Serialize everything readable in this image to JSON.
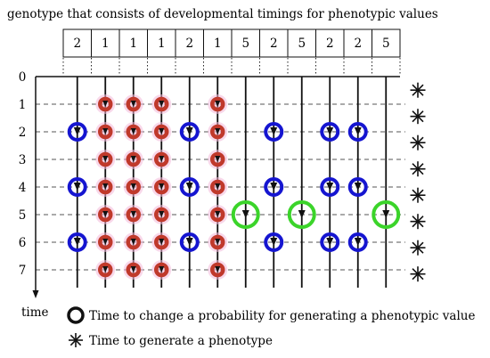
{
  "title": "genotype that consists of developmental timings for phenotypic values",
  "genotype": [
    "2",
    "1",
    "1",
    "1",
    "2",
    "1",
    "5",
    "2",
    "5",
    "2",
    "2",
    "5"
  ],
  "time_ticks": [
    "0",
    "1",
    "2",
    "3",
    "4",
    "5",
    "6",
    "7"
  ],
  "time_label": "time",
  "legend": {
    "circle_label": "Time to change a probability for generating a phenotypic value",
    "star_label": "Time to generate a phenotype"
  },
  "colors": {
    "period_1": "#c0392b",
    "period_1_halo": "#f2b8d8",
    "period_2": "#1515d0",
    "period_5": "#3bd42a",
    "grid_line": "#555555"
  },
  "icons": {
    "circle_marker": "ring-icon",
    "phenotype_marker": "asterisk-icon"
  }
}
